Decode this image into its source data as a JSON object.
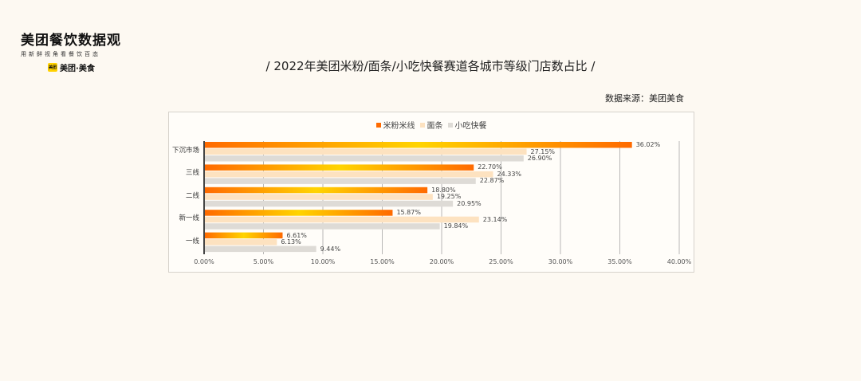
{
  "logo": {
    "title": "美团餐饮数据观",
    "subtitle": "用新鲜视角看餐饮百态",
    "badge": "美团",
    "brand": "美团·美食"
  },
  "title": "/  2022年美团米粉/面条/小吃快餐赛道各城市等级门店数占比  /",
  "source": "数据来源：美团美食",
  "colors": {
    "series0_start": "#ff6a00",
    "series0_mid": "#ffd400",
    "series0_end": "#ff6a00",
    "series1": "#fde2c0",
    "series2": "#dedbd6",
    "grid": "#8a8a8a"
  },
  "chart_data": {
    "type": "bar",
    "orientation": "horizontal",
    "categories": [
      "下沉市场",
      "三线",
      "二线",
      "新一线",
      "一线"
    ],
    "series": [
      {
        "name": "米粉米线",
        "values": [
          36.02,
          22.7,
          18.8,
          15.87,
          6.61
        ],
        "labels": [
          "36.02%",
          "22.70%",
          "18.80%",
          "15.87%",
          "6.61%"
        ]
      },
      {
        "name": "面条",
        "values": [
          27.15,
          24.33,
          19.25,
          23.14,
          6.13
        ],
        "labels": [
          "27.15%",
          "24.33%",
          "19.25%",
          "23.14%",
          "6.13%"
        ]
      },
      {
        "name": "小吃快餐",
        "values": [
          26.9,
          22.87,
          20.95,
          19.84,
          9.44
        ],
        "labels": [
          "26.90%",
          "22.87%",
          "20.95%",
          "19.84%",
          "9.44%"
        ]
      }
    ],
    "xlim": [
      0,
      40
    ],
    "xticks": [
      0,
      5,
      10,
      15,
      20,
      25,
      30,
      35,
      40
    ],
    "xtick_labels": [
      "0.00%",
      "5.00%",
      "10.00%",
      "15.00%",
      "20.00%",
      "25.00%",
      "30.00%",
      "35.00%",
      "40.00%"
    ],
    "grid": true,
    "legend_position": "top"
  }
}
